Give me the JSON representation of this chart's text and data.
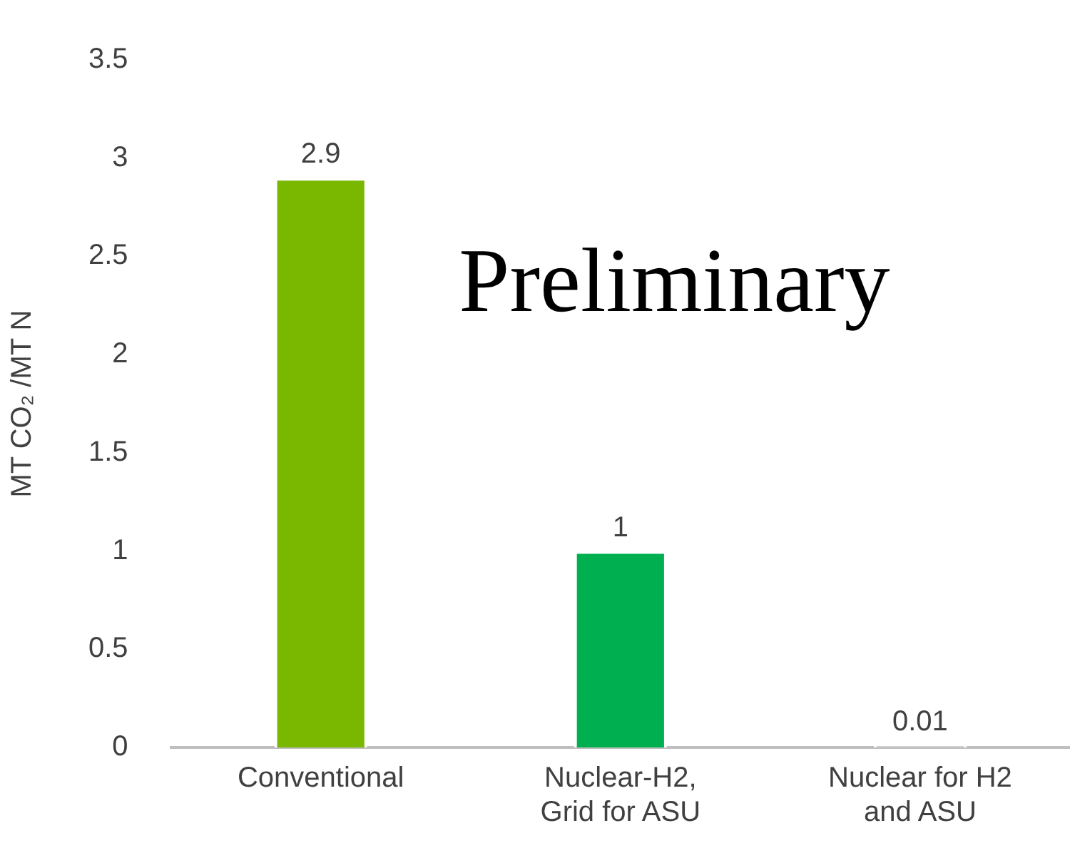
{
  "chart_data": {
    "type": "bar",
    "ylabel": "MT CO₂ /MT N",
    "categories": [
      "Conventional",
      "Nuclear-H2, Grid for ASU",
      "Nuclear for H2 and ASU"
    ],
    "values": [
      2.9,
      1,
      0.01
    ],
    "colors": [
      "#7ab800",
      "#00b050",
      "#c8c8c8"
    ],
    "ylim": [
      0,
      3.5
    ],
    "yticks": [
      0,
      0.5,
      1,
      1.5,
      2,
      2.5,
      3,
      3.5
    ],
    "grid": false,
    "legend": false,
    "data_labels": true,
    "annotations": [
      "Preliminary"
    ]
  }
}
